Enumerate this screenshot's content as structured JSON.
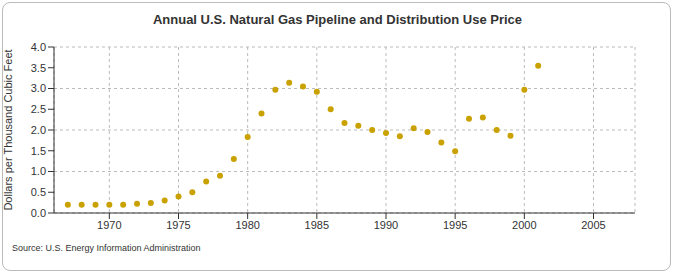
{
  "chart_data": {
    "type": "scatter",
    "title": "Annual U.S. Natural Gas Pipeline and Distribution Use Price",
    "y_label": "Dollars per Thousand Cubic Feet",
    "annotations": [
      "Source: U.S. Energy Information Administration"
    ],
    "x": [
      1967,
      1968,
      1969,
      1970,
      1971,
      1972,
      1973,
      1974,
      1975,
      1976,
      1977,
      1978,
      1979,
      1980,
      1981,
      1982,
      1983,
      1984,
      1985,
      1986,
      1987,
      1988,
      1989,
      1990,
      1991,
      1992,
      1993,
      1994,
      1995,
      1996,
      1997,
      1998,
      1999,
      2000,
      2001
    ],
    "values": [
      0.2,
      0.2,
      0.2,
      0.2,
      0.2,
      0.22,
      0.24,
      0.3,
      0.4,
      0.5,
      0.76,
      0.9,
      1.3,
      1.83,
      2.4,
      2.97,
      3.14,
      3.05,
      2.92,
      2.5,
      2.17,
      2.1,
      2.0,
      1.93,
      1.85,
      2.04,
      1.95,
      1.7,
      1.49,
      2.27,
      2.3,
      2.0,
      1.86,
      2.97,
      3.55
    ],
    "color": "#c9a100",
    "marker": "circle",
    "xlim": [
      1966,
      2008
    ],
    "xticks": [
      1970,
      1975,
      1980,
      1985,
      1990,
      1995,
      2000,
      2005
    ],
    "ylim": [
      0,
      4
    ],
    "yticks": [
      {
        "value": 0,
        "label": "0.0"
      },
      0.5,
      {
        "value": 1,
        "label": "1.0"
      },
      1.5,
      {
        "value": 2,
        "label": "2.0"
      },
      2.5,
      {
        "value": 3,
        "label": "3.0"
      },
      3.5,
      {
        "value": 4,
        "label": "4.0"
      }
    ],
    "grid": true
  }
}
